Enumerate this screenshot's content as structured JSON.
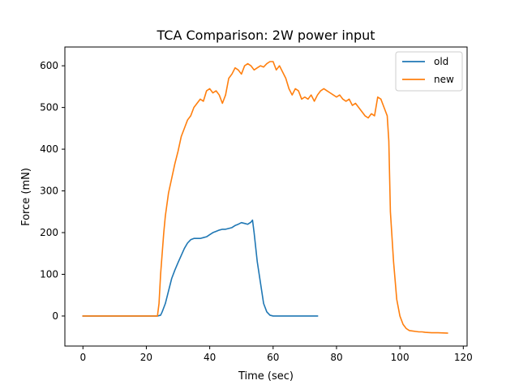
{
  "chart_data": {
    "type": "line",
    "title": "TCA Comparison: 2W power input",
    "xlabel": "Time (sec)",
    "ylabel": "Force (mN)",
    "xlim": [
      -5.7,
      121.2
    ],
    "ylim": [
      -72,
      645
    ],
    "xticks": [
      0,
      20,
      40,
      60,
      80,
      100,
      120
    ],
    "yticks": [
      0,
      100,
      200,
      300,
      400,
      500,
      600
    ],
    "grid": false,
    "legend": {
      "position": "upper-right",
      "entries": [
        "old",
        "new"
      ]
    },
    "series": [
      {
        "name": "old",
        "color": "#1f77b4",
        "x": [
          0,
          10,
          20,
          23.5,
          24.5,
          25,
          26,
          27,
          28,
          29,
          30,
          31,
          32,
          33,
          34,
          35,
          36,
          37,
          38,
          39,
          40,
          41,
          42,
          43,
          44,
          45,
          46,
          47,
          48,
          49,
          50,
          51,
          52,
          53,
          53.5,
          54,
          55,
          56,
          57,
          58,
          59,
          60,
          61,
          62,
          65,
          70,
          74
        ],
        "y": [
          0,
          0,
          0,
          0,
          2,
          10,
          30,
          60,
          90,
          110,
          128,
          145,
          162,
          175,
          183,
          186,
          186,
          186,
          188,
          190,
          195,
          200,
          203,
          206,
          208,
          208,
          210,
          212,
          217,
          220,
          224,
          222,
          220,
          225,
          230,
          200,
          130,
          80,
          30,
          10,
          2,
          0,
          0,
          0,
          0,
          0,
          0
        ]
      },
      {
        "name": "new",
        "color": "#ff7f0e",
        "x": [
          0,
          10,
          20,
          23.5,
          24,
          24.5,
          25,
          25.5,
          26,
          27,
          28,
          29,
          30,
          31,
          32,
          33,
          34,
          35,
          36,
          37,
          38,
          39,
          40,
          41,
          42,
          43,
          44,
          45,
          46,
          47,
          48,
          49,
          50,
          51,
          52,
          53,
          54,
          55,
          56,
          57,
          58,
          59,
          60,
          61,
          62,
          63,
          64,
          65,
          66,
          67,
          68,
          69,
          70,
          71,
          72,
          73,
          74,
          75,
          76,
          77,
          78,
          79,
          80,
          81,
          82,
          83,
          84,
          85,
          86,
          87,
          88,
          89,
          90,
          91,
          92,
          93,
          94,
          95,
          96,
          96.5,
          97,
          98,
          99,
          100,
          101,
          102,
          103,
          104,
          105,
          106,
          107,
          108,
          110,
          112,
          115
        ],
        "y": [
          0,
          0,
          0,
          0,
          30,
          100,
          150,
          200,
          240,
          295,
          330,
          365,
          395,
          430,
          450,
          470,
          480,
          500,
          510,
          520,
          515,
          540,
          545,
          535,
          540,
          530,
          510,
          530,
          570,
          580,
          595,
          590,
          580,
          600,
          605,
          600,
          590,
          595,
          600,
          597,
          605,
          610,
          610,
          590,
          600,
          585,
          570,
          545,
          530,
          545,
          540,
          520,
          525,
          520,
          530,
          515,
          530,
          540,
          545,
          540,
          535,
          530,
          525,
          530,
          520,
          515,
          520,
          505,
          510,
          500,
          490,
          480,
          475,
          485,
          480,
          525,
          520,
          500,
          480,
          420,
          250,
          130,
          40,
          0,
          -20,
          -30,
          -35,
          -36,
          -37,
          -38,
          -38,
          -39,
          -40,
          -40,
          -41
        ]
      }
    ]
  }
}
